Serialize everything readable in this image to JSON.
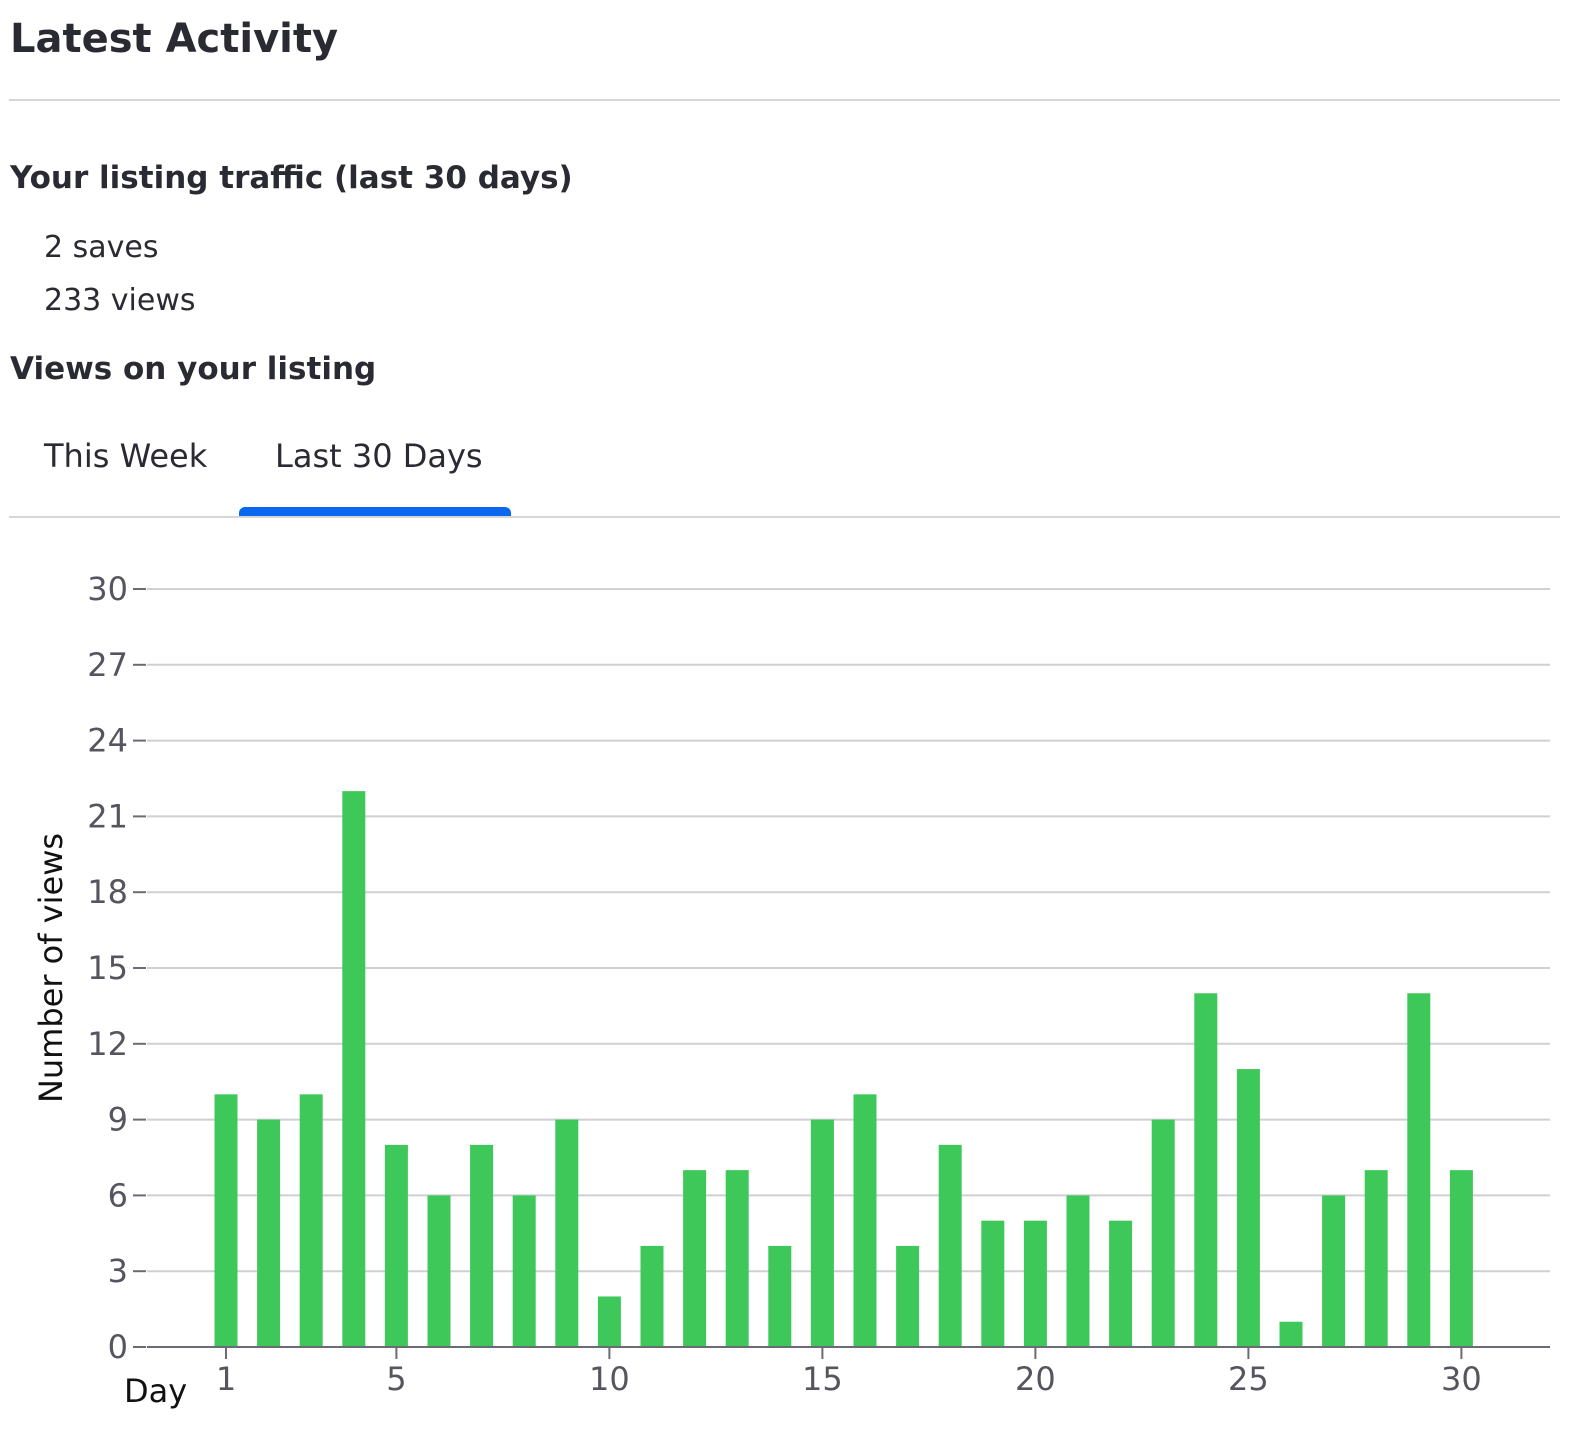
{
  "header": {
    "title": "Latest Activity"
  },
  "traffic": {
    "heading": "Your listing traffic (last 30 days)",
    "saves": "2 saves",
    "views": "233 views"
  },
  "views_section": {
    "heading": "Views on your listing",
    "tabs": [
      {
        "label": "This Week",
        "active": false
      },
      {
        "label": "Last 30 Days",
        "active": true
      }
    ],
    "accent_color": "#0b66f0"
  },
  "chart_data": {
    "type": "bar",
    "xlabel": "Day",
    "ylabel": "Number of views",
    "x": [
      1,
      2,
      3,
      4,
      5,
      6,
      7,
      8,
      9,
      10,
      11,
      12,
      13,
      14,
      15,
      16,
      17,
      18,
      19,
      20,
      21,
      22,
      23,
      24,
      25,
      26,
      27,
      28,
      29,
      30
    ],
    "values": [
      10,
      9,
      10,
      22,
      8,
      6,
      8,
      6,
      9,
      2,
      4,
      7,
      7,
      4,
      9,
      10,
      4,
      8,
      5,
      5,
      6,
      5,
      9,
      14,
      11,
      1,
      6,
      7,
      14,
      7
    ],
    "xticks": [
      1,
      5,
      10,
      15,
      20,
      25,
      30
    ],
    "yticks": [
      0,
      3,
      6,
      9,
      12,
      15,
      18,
      21,
      24,
      27,
      30
    ],
    "ylim": [
      0,
      30
    ],
    "grid": true,
    "bar_color": "#3ec85a"
  }
}
